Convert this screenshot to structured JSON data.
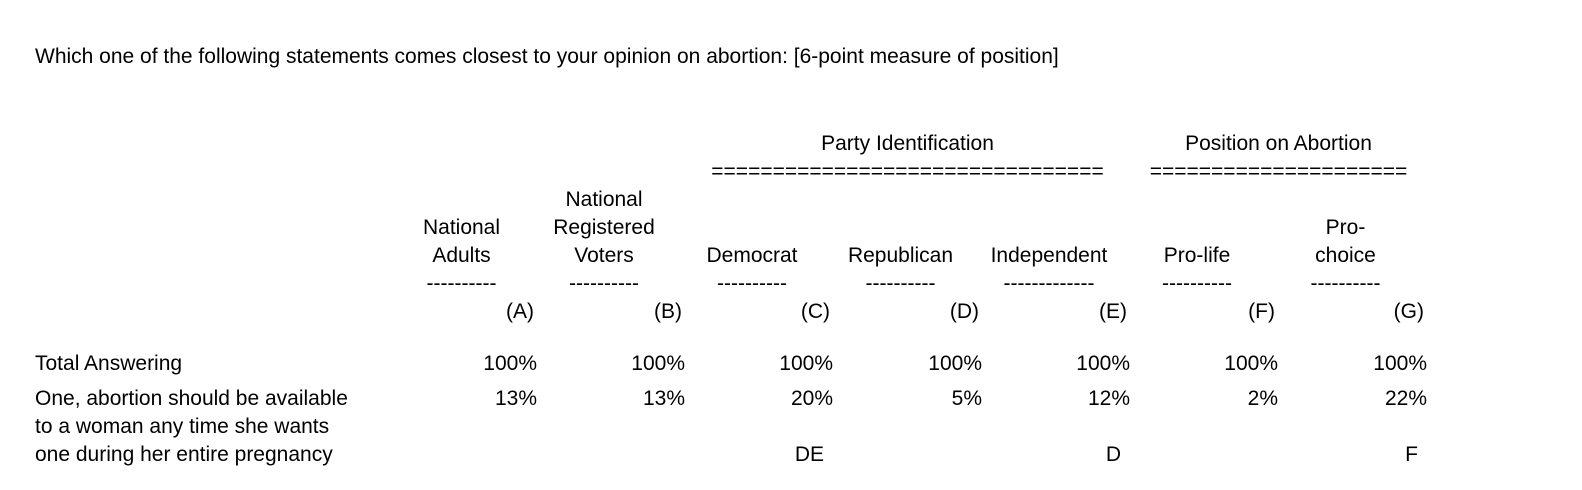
{
  "question": "Which one of the following statements comes closest to your opinion on abortion: [6-point measure of position]",
  "table": {
    "groups": [
      {
        "label": "Party Identification",
        "rule": "================================"
      },
      {
        "label": "Position on Abortion",
        "rule": "====================="
      }
    ],
    "columns": [
      {
        "id": "A",
        "header_lines": [
          "National",
          "Adults"
        ],
        "dashes": "----------",
        "letter": "(A)"
      },
      {
        "id": "B",
        "header_lines": [
          "National",
          "Registered",
          "Voters"
        ],
        "dashes": "----------",
        "letter": "(B)"
      },
      {
        "id": "C",
        "header_lines": [
          "Democrat"
        ],
        "dashes": "----------",
        "letter": "(C)"
      },
      {
        "id": "D",
        "header_lines": [
          "Republican"
        ],
        "dashes": "----------",
        "letter": "(D)"
      },
      {
        "id": "E",
        "header_lines": [
          "Independent"
        ],
        "dashes": "-------------",
        "letter": "(E)"
      },
      {
        "id": "F",
        "header_lines": [
          "Pro-life"
        ],
        "dashes": "----------",
        "letter": "(F)"
      },
      {
        "id": "G",
        "header_lines": [
          "Pro-",
          "choice"
        ],
        "dashes": "----------",
        "letter": "(G)"
      }
    ],
    "rows": [
      {
        "label_lines": [
          "Total Answering"
        ],
        "values": [
          "100%",
          "100%",
          "100%",
          "100%",
          "100%",
          "100%",
          "100%"
        ],
        "sig": [
          "",
          "",
          "",
          "",
          "",
          "",
          ""
        ]
      },
      {
        "label_lines": [
          "One, abortion should be available",
          "to a woman any time she wants",
          "one during her entire pregnancy"
        ],
        "values": [
          "13%",
          "13%",
          "20%",
          "5%",
          "12%",
          "2%",
          "22%"
        ],
        "sig": [
          "",
          "",
          "DE",
          "",
          "D",
          "",
          "F"
        ]
      }
    ]
  },
  "chart_data": {
    "type": "table",
    "title": "Which one of the following statements comes closest to your opinion on abortion: [6-point measure of position]",
    "column_groups": [
      {
        "label": "Party Identification",
        "columns": [
          "C",
          "D",
          "E"
        ]
      },
      {
        "label": "Position on Abortion",
        "columns": [
          "F",
          "G"
        ]
      }
    ],
    "columns": [
      "National Adults (A)",
      "National Registered Voters (B)",
      "Democrat (C)",
      "Republican (D)",
      "Independent (E)",
      "Pro-life (F)",
      "Pro-choice (G)"
    ],
    "rows": [
      {
        "label": "Total Answering",
        "values_pct": [
          100,
          100,
          100,
          100,
          100,
          100,
          100
        ]
      },
      {
        "label": "One, abortion should be available to a woman any time she wants one during her entire pregnancy",
        "values_pct": [
          13,
          13,
          20,
          5,
          12,
          2,
          22
        ],
        "significance": {
          "C": "DE",
          "E": "D",
          "G": "F"
        }
      }
    ]
  }
}
